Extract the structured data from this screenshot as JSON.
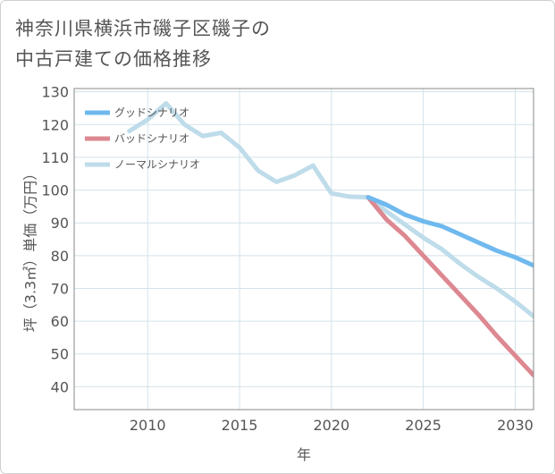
{
  "title_lines": [
    "神奈川県横浜市磯子区磯子の",
    "中古戸建ての価格推移"
  ],
  "colors": {
    "good": "#6fb9ee",
    "bad": "#dd8891",
    "normal": "#bedcea",
    "grid": "#d4e2ea",
    "frame": "#8a8a8a"
  },
  "chart_data": {
    "type": "line",
    "title": "神奈川県横浜市磯子区磯子の中古戸建ての価格推移",
    "xlabel": "年",
    "ylabel": "坪（3.3㎡）単価（万円）",
    "xlim": [
      2006,
      2031
    ],
    "ylim": [
      33,
      131
    ],
    "xticks": [
      2010,
      2015,
      2020,
      2025,
      2030
    ],
    "yticks": [
      40,
      50,
      60,
      70,
      80,
      90,
      100,
      110,
      120,
      130
    ],
    "legend_position": "top-left",
    "series": [
      {
        "name": "グッドシナリオ",
        "key": "good",
        "x": [
          2022,
          2023,
          2024,
          2025,
          2026,
          2027,
          2028,
          2029,
          2030,
          2031
        ],
        "y": [
          97.8,
          95.5,
          92.5,
          90.5,
          89,
          86.5,
          84,
          81.5,
          79.5,
          77
        ]
      },
      {
        "name": "バッドシナリオ",
        "key": "bad",
        "x": [
          2022,
          2023,
          2024,
          2025,
          2026,
          2027,
          2028,
          2029,
          2030,
          2031
        ],
        "y": [
          97.8,
          91,
          86,
          80,
          74,
          68,
          62,
          55.5,
          49.5,
          43.5
        ]
      },
      {
        "name": "ノーマルシナリオ",
        "key": "normal",
        "x": [
          2009,
          2010,
          2011,
          2012,
          2013,
          2014,
          2015,
          2016,
          2017,
          2018,
          2019,
          2020,
          2021,
          2022,
          2023,
          2024,
          2025,
          2026,
          2027,
          2028,
          2029,
          2030,
          2031
        ],
        "y": [
          118,
          121.5,
          126.5,
          120,
          116.5,
          117.5,
          113,
          106,
          102.5,
          104.5,
          107.5,
          99,
          98,
          97.8,
          93.5,
          89.5,
          85.5,
          82,
          77.5,
          73.5,
          70,
          66,
          61.5
        ]
      }
    ]
  }
}
